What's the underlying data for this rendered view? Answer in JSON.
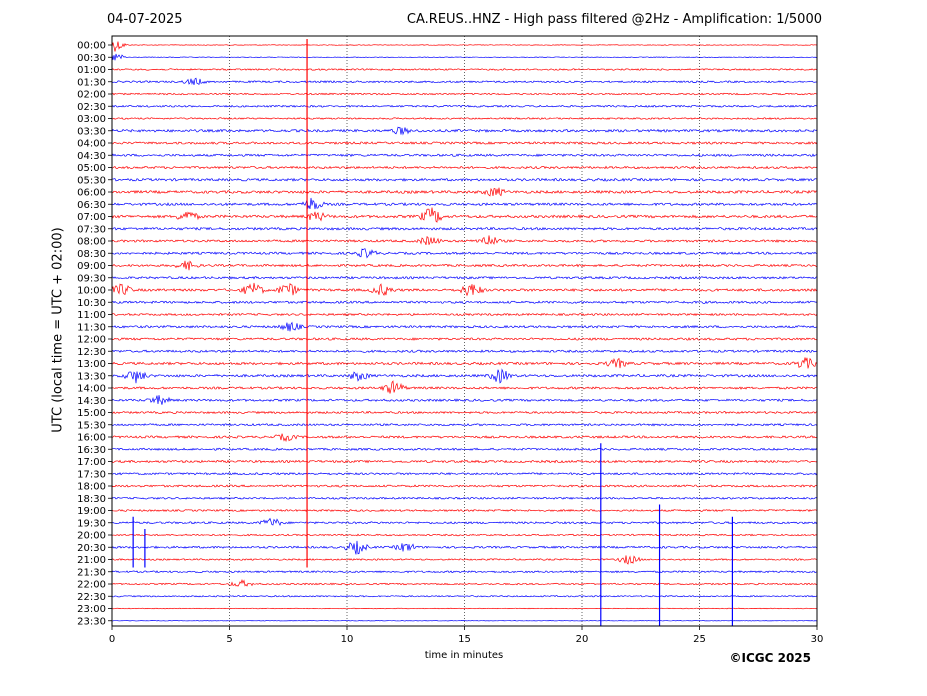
{
  "header": {
    "date": "04-07-2025",
    "station_title": "CA.REUS..HNZ - High pass filtered @2Hz - Amplification: 1/5000"
  },
  "footer": {
    "copyright": "©ICGC 2025"
  },
  "chart_data": {
    "type": "line",
    "title": "CA.REUS..HNZ - High pass filtered @2Hz - Amplification: 1/5000",
    "subtitle": "04-07-2025",
    "xlabel": "time in minutes",
    "ylabel": "UTC (local time = UTC + 02:00)",
    "xlim": [
      0,
      30
    ],
    "x_ticks": [
      0,
      5,
      10,
      15,
      20,
      25,
      30
    ],
    "vertical_grid": true,
    "grid_style": "dotted",
    "trace_colors": [
      "#ff0000",
      "#0000ff"
    ],
    "row_labels": [
      "00:00",
      "00:30",
      "01:00",
      "01:30",
      "02:00",
      "02:30",
      "03:00",
      "03:30",
      "04:00",
      "04:30",
      "05:00",
      "05:30",
      "06:00",
      "06:30",
      "07:00",
      "07:30",
      "08:00",
      "08:30",
      "09:00",
      "09:30",
      "10:00",
      "10:30",
      "11:00",
      "11:30",
      "12:00",
      "12:30",
      "13:00",
      "13:30",
      "14:00",
      "14:30",
      "15:00",
      "15:30",
      "16:00",
      "16:30",
      "17:00",
      "17:30",
      "18:00",
      "18:30",
      "19:00",
      "19:30",
      "20:00",
      "20:30",
      "21:00",
      "21:30",
      "22:00",
      "22:30",
      "23:00",
      "23:30"
    ],
    "noise_level": [
      0.15,
      0.15,
      0.35,
      0.4,
      0.35,
      0.4,
      0.35,
      0.55,
      0.5,
      0.5,
      0.5,
      0.55,
      0.6,
      0.55,
      0.6,
      0.55,
      0.5,
      0.5,
      0.5,
      0.5,
      0.55,
      0.5,
      0.45,
      0.5,
      0.5,
      0.5,
      0.55,
      0.55,
      0.5,
      0.5,
      0.45,
      0.45,
      0.5,
      0.45,
      0.5,
      0.45,
      0.45,
      0.4,
      0.4,
      0.45,
      0.35,
      0.45,
      0.35,
      0.4,
      0.35,
      0.3,
      0.15,
      0.1
    ],
    "events": [
      {
        "row": 0,
        "minute": 0.1,
        "amp": 3.0
      },
      {
        "row": 1,
        "minute": 0.1,
        "amp": 2.0
      },
      {
        "row": 3,
        "minute": 3.5,
        "amp": 1.5
      },
      {
        "row": 7,
        "minute": 12.3,
        "amp": 1.5
      },
      {
        "row": 12,
        "minute": 16.3,
        "amp": 2.0
      },
      {
        "row": 13,
        "minute": 8.5,
        "amp": 3.0
      },
      {
        "row": 14,
        "minute": 3.2,
        "amp": 2.5
      },
      {
        "row": 14,
        "minute": 13.6,
        "amp": 4.0
      },
      {
        "row": 14,
        "minute": 8.7,
        "amp": 2.0
      },
      {
        "row": 16,
        "minute": 16.0,
        "amp": 2.5
      },
      {
        "row": 16,
        "minute": 13.5,
        "amp": 2.0
      },
      {
        "row": 17,
        "minute": 10.8,
        "amp": 2.0
      },
      {
        "row": 18,
        "minute": 3.2,
        "amp": 2.0
      },
      {
        "row": 20,
        "minute": 0.4,
        "amp": 2.5
      },
      {
        "row": 20,
        "minute": 6.0,
        "amp": 3.0
      },
      {
        "row": 20,
        "minute": 7.5,
        "amp": 3.0
      },
      {
        "row": 20,
        "minute": 11.5,
        "amp": 2.5
      },
      {
        "row": 20,
        "minute": 15.3,
        "amp": 3.0
      },
      {
        "row": 23,
        "minute": 7.6,
        "amp": 2.0
      },
      {
        "row": 26,
        "minute": 21.5,
        "amp": 2.0
      },
      {
        "row": 26,
        "minute": 29.5,
        "amp": 2.5
      },
      {
        "row": 27,
        "minute": 1.0,
        "amp": 3.0
      },
      {
        "row": 27,
        "minute": 10.5,
        "amp": 2.0
      },
      {
        "row": 27,
        "minute": 16.5,
        "amp": 3.0
      },
      {
        "row": 28,
        "minute": 12.0,
        "amp": 3.0
      },
      {
        "row": 29,
        "minute": 2.0,
        "amp": 2.0
      },
      {
        "row": 32,
        "minute": 7.4,
        "amp": 1.5
      },
      {
        "row": 39,
        "minute": 6.8,
        "amp": 2.0
      },
      {
        "row": 41,
        "minute": 10.4,
        "amp": 3.0
      },
      {
        "row": 41,
        "minute": 12.5,
        "amp": 2.0
      },
      {
        "row": 42,
        "minute": 22.0,
        "amp": 2.0
      },
      {
        "row": 44,
        "minute": 5.5,
        "amp": 1.5
      }
    ],
    "spikes": [
      {
        "minute": 8.3,
        "row_from": 0,
        "row_to": 42,
        "color": "#ff0000"
      },
      {
        "minute": 20.8,
        "row_from": 33,
        "row_to": 47,
        "color": "#0000ff"
      },
      {
        "minute": 23.3,
        "row_from": 38,
        "row_to": 47,
        "color": "#0000ff"
      },
      {
        "minute": 26.4,
        "row_from": 39,
        "row_to": 47,
        "color": "#0000ff"
      },
      {
        "minute": 0.9,
        "row_from": 39,
        "row_to": 42,
        "color": "#0000ff"
      },
      {
        "minute": 1.4,
        "row_from": 40,
        "row_to": 42,
        "color": "#0000ff"
      }
    ]
  }
}
